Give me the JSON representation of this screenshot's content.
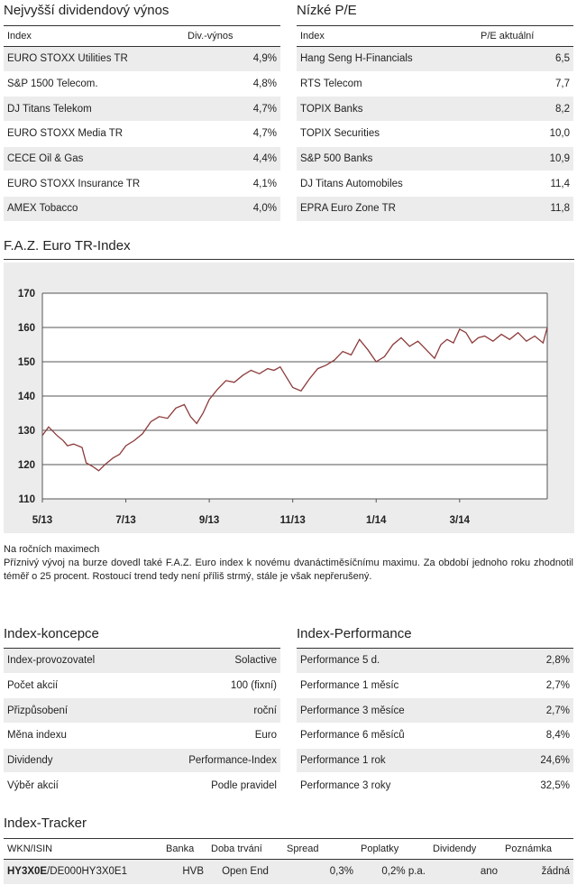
{
  "dividend": {
    "title": "Nejvyšší dividendový výnos",
    "headers": [
      "Index",
      "Div.-výnos"
    ],
    "rows": [
      [
        "EURO STOXX Utilities TR",
        "4,9%"
      ],
      [
        "S&P 1500 Telecom.",
        "4,8%"
      ],
      [
        "DJ Titans Telekom",
        "4,7%"
      ],
      [
        "EURO STOXX Media TR",
        "4,7%"
      ],
      [
        "CECE Oil & Gas",
        "4,4%"
      ],
      [
        "EURO STOXX Insurance TR",
        "4,1%"
      ],
      [
        "AMEX Tobacco",
        "4,0%"
      ]
    ]
  },
  "pe": {
    "title": "Nízké P/E",
    "headers": [
      "Index",
      "P/E aktuální"
    ],
    "rows": [
      [
        "Hang Seng H-Financials",
        "6,5"
      ],
      [
        "RTS Telecom",
        "7,7"
      ],
      [
        "TOPIX Banks",
        "8,2"
      ],
      [
        "TOPIX Securities",
        "10,0"
      ],
      [
        "S&P 500 Banks",
        "10,9"
      ],
      [
        "DJ Titans Automobiles",
        "11,4"
      ],
      [
        "EPRA Euro Zone TR",
        "11,8"
      ]
    ]
  },
  "chart_title": "F.A.Z. Euro TR-Index",
  "chart_data": {
    "type": "line",
    "title": "",
    "xlabel": "",
    "ylabel": "",
    "ylim": [
      110,
      170
    ],
    "yticks": [
      "110",
      "120",
      "130",
      "140",
      "150",
      "160",
      "170"
    ],
    "xticks": [
      "5/13",
      "7/13",
      "9/13",
      "11/13",
      "1/14",
      "3/14"
    ],
    "grid": "horizontal",
    "color": "#8c3a3a",
    "series": [
      {
        "name": "",
        "x": [
          0.0,
          0.15,
          0.35,
          0.5,
          0.6,
          0.75,
          0.95,
          1.05,
          1.2,
          1.35,
          1.5,
          1.7,
          1.85,
          2.0,
          2.2,
          2.4,
          2.6,
          2.8,
          3.0,
          3.2,
          3.4,
          3.55,
          3.7,
          3.85,
          4.0,
          4.2,
          4.4,
          4.6,
          4.8,
          5.0,
          5.2,
          5.4,
          5.55,
          5.7,
          5.85,
          6.0,
          6.2,
          6.4,
          6.6,
          6.8,
          7.0,
          7.2,
          7.4,
          7.6,
          7.8,
          8.0,
          8.2,
          8.4,
          8.6,
          8.8,
          9.0,
          9.2,
          9.4,
          9.55,
          9.7,
          9.85,
          10.0,
          10.15,
          10.3,
          10.45,
          10.6,
          10.8,
          11.0,
          11.2,
          11.4,
          11.6,
          11.8,
          12.0,
          12.1
        ],
        "values": [
          128.5,
          131.0,
          128.5,
          127.0,
          125.5,
          126.0,
          125.0,
          120.5,
          119.5,
          118.2,
          120.0,
          122.0,
          123.0,
          125.5,
          127.0,
          129.0,
          132.5,
          134.0,
          133.5,
          136.5,
          137.5,
          134.0,
          132.0,
          135.0,
          139.0,
          142.0,
          144.5,
          144.0,
          146.0,
          147.5,
          146.5,
          148.0,
          147.5,
          148.5,
          145.5,
          142.5,
          141.5,
          145.0,
          148.0,
          149.0,
          150.5,
          153.0,
          152.0,
          156.5,
          153.5,
          150.0,
          151.5,
          155.0,
          157.0,
          154.5,
          156.0,
          153.5,
          151.0,
          155.0,
          156.5,
          155.5,
          159.5,
          158.5,
          155.5,
          157.0,
          157.5,
          156.0,
          158.0,
          156.5,
          158.5,
          156.0,
          157.5,
          155.5,
          160.0
        ]
      }
    ]
  },
  "note": {
    "heading": "Na ročních maximech",
    "text": "Příznivý vývoj na burze dovedl také F.A.Z. Euro index k novému dvanáctiměsíčnímu maximu. Za období jednoho roku zhodnotil téměř o 25 procent. Rostoucí trend tedy není příliš strmý, stále je však nepřerušený."
  },
  "koncepce": {
    "title": "Index-koncepce",
    "rows": [
      [
        "Index-provozovatel",
        "Solactive"
      ],
      [
        "Počet akcií",
        "100 (fixní)"
      ],
      [
        "Přizpůsobení",
        "roční"
      ],
      [
        "Měna indexu",
        "Euro"
      ],
      [
        "Dividendy",
        "Performance-Index"
      ],
      [
        "Výběr akcií",
        "Podle pravidel"
      ]
    ]
  },
  "performance": {
    "title": "Index-Performance",
    "rows": [
      [
        "Performance 5 d.",
        "2,8%"
      ],
      [
        "Performance 1 měsíc",
        "2,7%"
      ],
      [
        "Performance 3 měsíce",
        "2,7%"
      ],
      [
        "Performance 6 měsíců",
        "8,4%"
      ],
      [
        "Performance 1 rok",
        "24,6%"
      ],
      [
        "Performance 3 roky",
        "32,5%"
      ]
    ]
  },
  "tracker": {
    "title": "Index-Tracker",
    "headers": [
      "WKN/ISIN",
      "Banka",
      "Doba trvání",
      "Spread",
      "Poplatky",
      "Dividendy",
      "Poznámka"
    ],
    "row": {
      "wkn": "HY3X0E",
      "isin": "/DE000HY3X0E1",
      "bank": "HVB",
      "duration": "Open End",
      "spread": "0,3%",
      "fees": "0,2% p.a.",
      "dividends": "ano",
      "note": "žádná"
    }
  }
}
